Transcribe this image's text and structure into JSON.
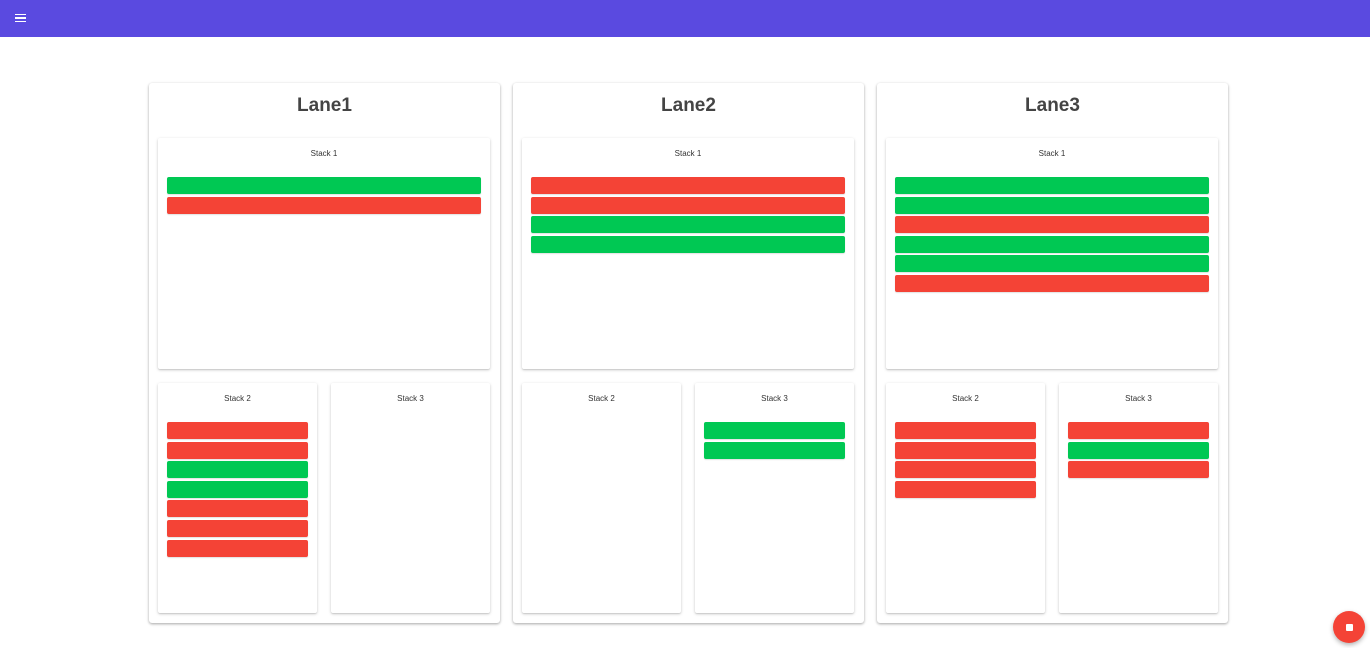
{
  "app": {
    "menu_icon": "menu-icon",
    "accent_color": "#5a4ae0"
  },
  "colors": {
    "green": "#00c853",
    "red": "#f44336"
  },
  "lanes": [
    {
      "title": "Lane1",
      "stacks": [
        {
          "label": "Stack 1",
          "cards": [
            "green",
            "red"
          ]
        },
        {
          "label": "Stack 2",
          "cards": [
            "red",
            "red",
            "green",
            "green",
            "red",
            "red",
            "red"
          ]
        },
        {
          "label": "Stack 3",
          "cards": []
        }
      ]
    },
    {
      "title": "Lane2",
      "stacks": [
        {
          "label": "Stack 1",
          "cards": [
            "red",
            "red",
            "green",
            "green"
          ]
        },
        {
          "label": "Stack 2",
          "cards": []
        },
        {
          "label": "Stack 3",
          "cards": [
            "green",
            "green"
          ]
        }
      ]
    },
    {
      "title": "Lane3",
      "stacks": [
        {
          "label": "Stack 1",
          "cards": [
            "green",
            "green",
            "red",
            "green",
            "green",
            "red"
          ]
        },
        {
          "label": "Stack 2",
          "cards": [
            "red",
            "red",
            "red",
            "red"
          ]
        },
        {
          "label": "Stack 3",
          "cards": [
            "red",
            "green",
            "red"
          ]
        }
      ]
    }
  ],
  "fab": {
    "icon": "stop-icon"
  }
}
